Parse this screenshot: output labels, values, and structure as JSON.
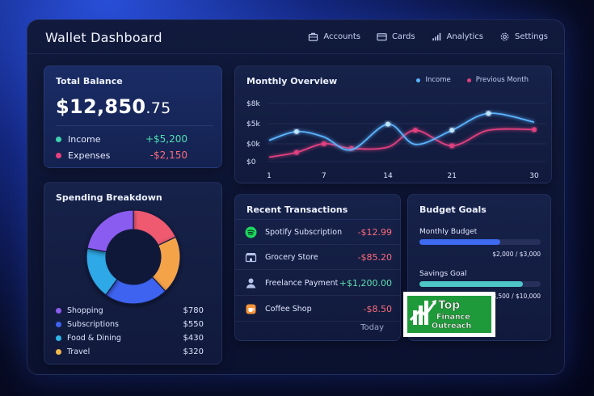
{
  "app": {
    "title": "Wallet Dashboard"
  },
  "nav": [
    {
      "label": "Accounts",
      "icon": "briefcase-icon"
    },
    {
      "label": "Cards",
      "icon": "card-icon"
    },
    {
      "label": "Analytics",
      "icon": "bar-chart-icon"
    },
    {
      "label": "Settings",
      "icon": "gear-icon"
    }
  ],
  "balance": {
    "title": "Total Balance",
    "amount_main": "$12,850",
    "amount_cents": ".75",
    "income_label": "Income",
    "income_value": "+$5,200",
    "expenses_label": "Expenses",
    "expenses_value": "-$2,150"
  },
  "overview": {
    "title": "Monthly Overview",
    "legend_income": "Income",
    "legend_previous": "Previous Month",
    "chart_data": {
      "type": "line",
      "x_ticks": [
        "1",
        "7",
        "14",
        "21",
        "30"
      ],
      "y_ticks": [
        "$8k",
        "$5k",
        "$0k",
        "$0"
      ],
      "series": [
        {
          "name": "Income",
          "x": [
            1,
            4,
            7,
            10,
            14,
            17,
            21,
            25,
            30
          ],
          "values": [
            4.0,
            5.3,
            4.5,
            2.6,
            6.4,
            3.4,
            5.5,
            8.0,
            6.7
          ]
        },
        {
          "name": "Previous Month",
          "x": [
            1,
            4,
            7,
            10,
            14,
            17,
            21,
            25,
            30
          ],
          "values": [
            1.5,
            2.2,
            3.5,
            2.8,
            3.0,
            5.5,
            3.2,
            5.5,
            5.6
          ]
        }
      ],
      "colors": {
        "Income": "#5ab4ff",
        "Previous Month": "#e0407f"
      }
    }
  },
  "spending": {
    "title": "Spending Breakdown",
    "items": [
      {
        "label": "Shopping",
        "value": "$780",
        "color": "#8a5cf0"
      },
      {
        "label": "Subscriptions",
        "value": "$550",
        "color": "#3d63f0"
      },
      {
        "label": "Food & Dining",
        "value": "$430",
        "color": "#2fb6e8"
      },
      {
        "label": "Travel",
        "value": "$320",
        "color": "#f2b84a"
      }
    ],
    "donut_segments": [
      {
        "share": 0.18,
        "color": "#ef5a6f"
      },
      {
        "share": 0.2,
        "color": "#f5a34a"
      },
      {
        "share": 0.22,
        "color": "#3d63f0"
      },
      {
        "share": 0.18,
        "color": "#2fa8e6"
      },
      {
        "share": 0.22,
        "color": "#8a5cf0"
      }
    ]
  },
  "transactions": {
    "title": "Recent Transactions",
    "items": [
      {
        "name": "Spotify Subscription",
        "amount": "-$12.99",
        "icon": "spotify-icon",
        "color": "#ff6b7a"
      },
      {
        "name": "Grocery Store",
        "amount": "-$85.20",
        "icon": "store-icon",
        "color": "#ff6b7a"
      },
      {
        "name": "Freelance Payment",
        "amount": "+$1,200.00",
        "icon": "person-icon",
        "color": "#5fe0b0"
      },
      {
        "name": "Coffee Shop",
        "amount": "-$8.50",
        "icon": "coffee-icon",
        "color": "#ff6b7a"
      }
    ],
    "footer": "Today"
  },
  "budget": {
    "title": "Budget Goals",
    "goals": [
      {
        "label": "Monthly Budget",
        "value": "$2,000 / $3,000",
        "progress": 0.6667,
        "color": "#3d6af0"
      },
      {
        "label": "Savings Goal",
        "value": "$8,500 / $10,000",
        "progress": 0.85,
        "color": "#4ec6c8"
      }
    ]
  },
  "logo": {
    "text_line1": "Top",
    "text_line2": "Finance",
    "text_line3": "Outreach"
  }
}
